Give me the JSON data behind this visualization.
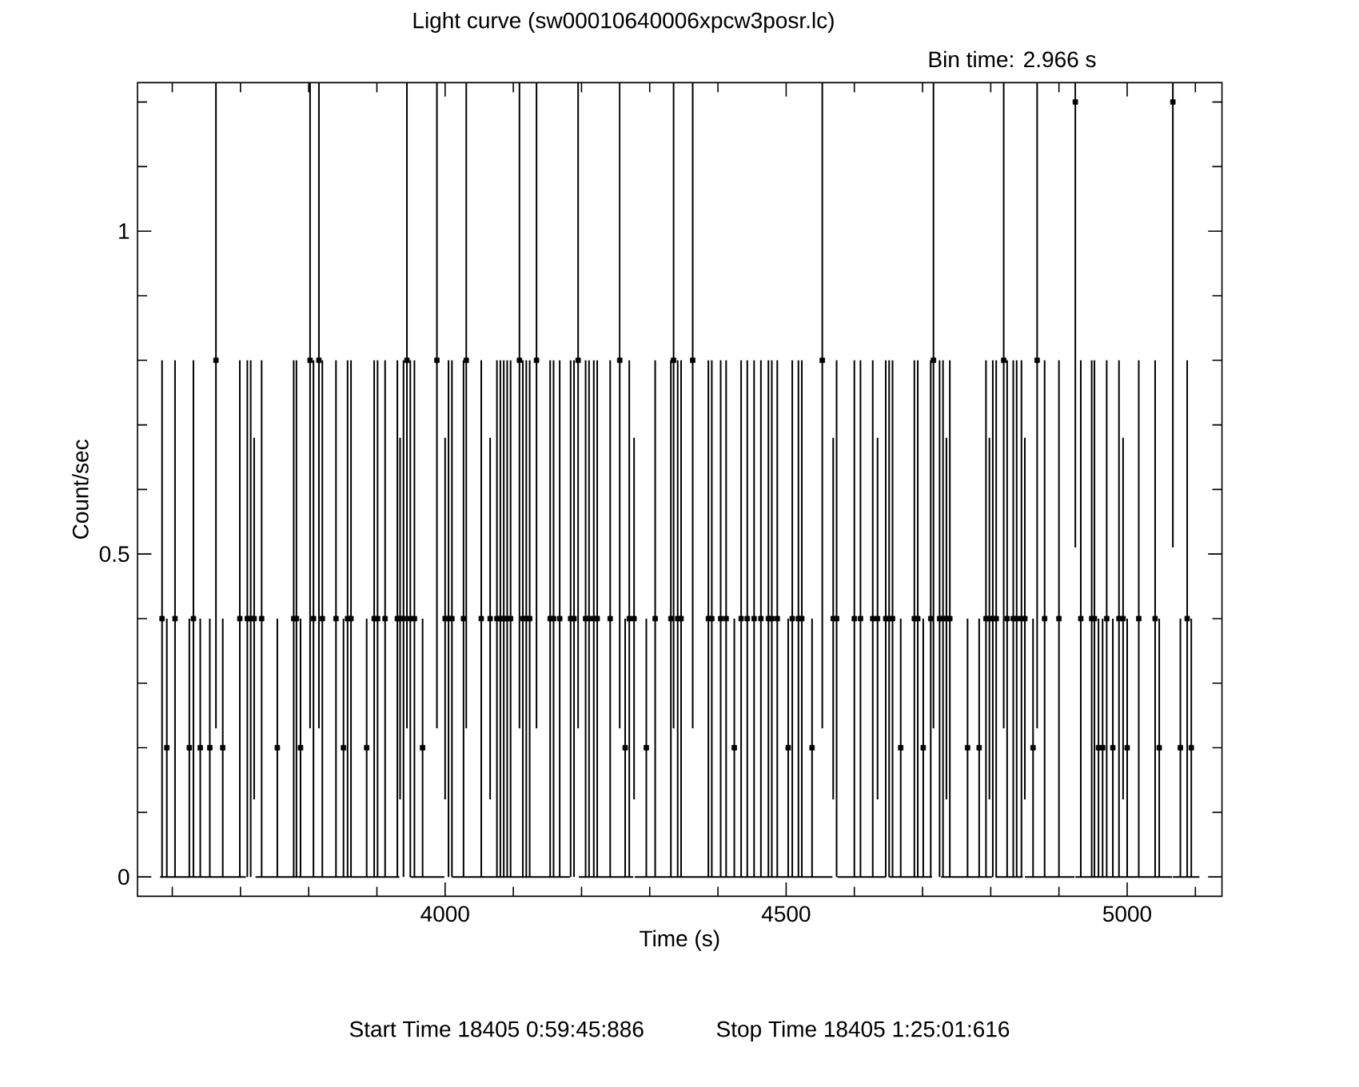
{
  "chart_data": {
    "type": "scatter",
    "title": "Light curve (sw00010640006xpcw3posr.lc)",
    "subtitle": "Bin time: 2.966 s",
    "xlabel": "Time (s)",
    "ylabel": "Count/sec",
    "annotations": [
      "Start Time 18405 0:59:45:886",
      "Stop Time 18405 1:25:01:616"
    ],
    "xlim": [
      3549,
      5139
    ],
    "ylim": [
      -0.03,
      1.23
    ],
    "xticks": [
      {
        "value": 3600,
        "label": null
      },
      {
        "value": 3700,
        "label": null
      },
      {
        "value": 3800,
        "label": null
      },
      {
        "value": 3900,
        "label": null
      },
      4000,
      {
        "value": 4100,
        "label": null
      },
      {
        "value": 4200,
        "label": null
      },
      {
        "value": 4300,
        "label": null
      },
      {
        "value": 4400,
        "label": null
      },
      4500,
      {
        "value": 4600,
        "label": null
      },
      {
        "value": 4700,
        "label": null
      },
      {
        "value": 4800,
        "label": null
      },
      {
        "value": 4900,
        "label": null
      },
      5000,
      {
        "value": 5100,
        "label": null
      }
    ],
    "yticks": [
      0,
      {
        "value": 0.1,
        "label": null
      },
      {
        "value": 0.2,
        "label": null
      },
      {
        "value": 0.3,
        "label": null
      },
      {
        "value": 0.4,
        "label": null
      },
      0.5,
      {
        "value": 0.6,
        "label": null
      },
      {
        "value": 0.7,
        "label": null
      },
      {
        "value": 0.8,
        "label": null
      },
      {
        "value": 0.9,
        "label": null
      },
      1,
      {
        "value": 1.1,
        "label": null
      },
      {
        "value": 1.2,
        "label": null
      }
    ],
    "marker": "square",
    "series": [
      {
        "color": "#000000",
        "x": [
          3585,
          3592,
          3604,
          3625,
          3631,
          3641,
          3655,
          3664,
          3674,
          3699,
          3710,
          3715,
          3720,
          3731,
          3754,
          3778,
          3782,
          3788,
          3802,
          3807,
          3815,
          3820,
          3840,
          3851,
          3857,
          3862,
          3885,
          3896,
          3901,
          3912,
          3930,
          3934,
          3939,
          3944,
          3949,
          3955,
          3967,
          3988,
          4000,
          4005,
          4010,
          4027,
          4031,
          4053,
          4066,
          4076,
          4081,
          4086,
          4091,
          4096,
          4109,
          4114,
          4119,
          4124,
          4134,
          4154,
          4159,
          4168,
          4184,
          4189,
          4195,
          4206,
          4211,
          4218,
          4223,
          4242,
          4256,
          4264,
          4270,
          4277,
          4295,
          4308,
          4331,
          4335,
          4341,
          4346,
          4363,
          4386,
          4391,
          4404,
          4412,
          4424,
          4434,
          4443,
          4453,
          4463,
          4474,
          4479,
          4487,
          4503,
          4509,
          4518,
          4523,
          4538,
          4553,
          4569,
          4574,
          4600,
          4609,
          4627,
          4634,
          4646,
          4651,
          4656,
          4668,
          4688,
          4693,
          4701,
          4712,
          4716,
          4725,
          4730,
          4735,
          4740,
          4766,
          4783,
          4793,
          4798,
          4803,
          4808,
          4819,
          4824,
          4833,
          4838,
          4845,
          4850,
          4862,
          4868,
          4879,
          4900,
          4924,
          4932,
          4948,
          4952,
          4958,
          4964,
          4970,
          4979,
          4988,
          4994,
          5000,
          5017,
          5041,
          5047,
          5067,
          5078,
          5088,
          5094
        ],
        "values": [
          0.4,
          0.2,
          0.4,
          0.2,
          0.4,
          0.2,
          0.2,
          0.8,
          0.2,
          0.4,
          0.4,
          0.4,
          0.4,
          0.4,
          0.2,
          0.4,
          0.4,
          0.2,
          0.8,
          0.4,
          0.8,
          0.4,
          0.4,
          0.2,
          0.4,
          0.4,
          0.2,
          0.4,
          0.4,
          0.4,
          0.4,
          0.4,
          0.4,
          0.8,
          0.4,
          0.4,
          0.2,
          0.8,
          0.4,
          0.4,
          0.4,
          0.4,
          0.8,
          0.4,
          0.4,
          0.4,
          0.4,
          0.4,
          0.4,
          0.4,
          0.8,
          0.4,
          0.4,
          0.4,
          0.8,
          0.4,
          0.4,
          0.4,
          0.4,
          0.4,
          0.8,
          0.4,
          0.4,
          0.4,
          0.4,
          0.4,
          0.8,
          0.2,
          0.4,
          0.4,
          0.2,
          0.4,
          0.4,
          0.8,
          0.4,
          0.4,
          0.8,
          0.4,
          0.4,
          0.4,
          0.4,
          0.2,
          0.4,
          0.4,
          0.4,
          0.4,
          0.4,
          0.4,
          0.4,
          0.2,
          0.4,
          0.4,
          0.4,
          0.2,
          0.8,
          0.4,
          0.4,
          0.4,
          0.4,
          0.4,
          0.4,
          0.4,
          0.4,
          0.4,
          0.2,
          0.4,
          0.4,
          0.2,
          0.4,
          0.8,
          0.4,
          0.4,
          0.4,
          0.4,
          0.2,
          0.2,
          0.4,
          0.4,
          0.4,
          0.4,
          0.8,
          0.4,
          0.4,
          0.4,
          0.4,
          0.4,
          0.2,
          0.8,
          0.4,
          0.4,
          1.2,
          0.4,
          0.4,
          0.4,
          0.2,
          0.2,
          0.4,
          0.2,
          0.4,
          0.4,
          0.2,
          0.4,
          0.4,
          0.2,
          1.2,
          0.2,
          0.4,
          0.2
        ],
        "errors": [
          0.4,
          0.2,
          0.4,
          0.2,
          0.4,
          0.2,
          0.2,
          [
            0.23,
            1.23
          ],
          0.2,
          0.4,
          0.4,
          0.4,
          0.28,
          0.4,
          0.2,
          0.4,
          0.4,
          0.2,
          [
            0.23,
            1.23
          ],
          0.4,
          [
            0.23,
            1.23
          ],
          0.4,
          0.4,
          0.2,
          0.4,
          0.4,
          0.2,
          0.4,
          0.4,
          0.4,
          0.4,
          0.28,
          0.4,
          [
            0.23,
            1.23
          ],
          0.4,
          0.4,
          0.2,
          [
            0.23,
            1.23
          ],
          0.28,
          0.4,
          0.4,
          0.4,
          [
            0.23,
            1.23
          ],
          0.4,
          0.28,
          0.4,
          0.4,
          0.4,
          0.4,
          0.4,
          [
            0.23,
            1.23
          ],
          0.4,
          0.4,
          0.4,
          [
            0.23,
            1.23
          ],
          0.4,
          0.4,
          0.4,
          0.4,
          0.4,
          [
            0.23,
            1.23
          ],
          0.4,
          0.4,
          0.4,
          0.4,
          0.4,
          [
            0.23,
            1.23
          ],
          0.2,
          0.4,
          0.28,
          0.2,
          0.4,
          0.4,
          [
            0.23,
            1.23
          ],
          0.4,
          0.4,
          [
            0.23,
            1.23
          ],
          0.4,
          0.4,
          0.4,
          0.4,
          0.2,
          0.4,
          0.4,
          0.4,
          0.4,
          0.4,
          0.4,
          0.4,
          0.2,
          0.4,
          0.4,
          0.4,
          0.2,
          [
            0.23,
            1.23
          ],
          0.28,
          0.4,
          0.4,
          0.4,
          0.4,
          0.28,
          0.4,
          0.4,
          0.4,
          0.2,
          0.4,
          0.4,
          0.2,
          0.4,
          [
            0.23,
            1.23
          ],
          0.4,
          0.4,
          0.28,
          0.4,
          0.2,
          0.2,
          0.4,
          0.28,
          0.4,
          0.4,
          [
            0.23,
            1.23
          ],
          0.4,
          0.4,
          0.4,
          0.4,
          0.28,
          0.2,
          [
            0.23,
            1.23
          ],
          0.4,
          0.4,
          [
            0.51,
            1.23
          ],
          0.4,
          0.4,
          0.4,
          0.2,
          0.2,
          0.4,
          0.2,
          0.4,
          0.28,
          0.2,
          0.4,
          0.4,
          0.2,
          [
            0.51,
            1.23
          ],
          0.2,
          0.4,
          0.2
        ]
      },
      {
        "type": "line",
        "color": "#000000",
        "marker": "none",
        "x": [
          3583,
          3707,
          3715,
          3723,
          3932,
          3941,
          3950,
          3998,
          4004,
          4011,
          4182,
          4190,
          4197,
          4275,
          4277,
          4279,
          4567,
          4571,
          4576,
          4645,
          4648,
          4652,
          4713,
          4720,
          4728,
          4801,
          4804,
          4808,
          4846,
          4848,
          4851,
          4922,
          4923,
          4925,
          5065,
          5066,
          5068,
          5105
        ],
        "values": [
          0,
          0,
          null,
          0,
          0,
          null,
          0,
          0,
          null,
          0,
          0,
          null,
          0,
          0,
          null,
          0,
          0,
          null,
          0,
          0,
          null,
          0,
          0,
          null,
          0,
          0,
          null,
          0,
          0,
          null,
          0,
          0,
          null,
          0,
          0,
          null,
          0,
          0
        ]
      }
    ]
  }
}
